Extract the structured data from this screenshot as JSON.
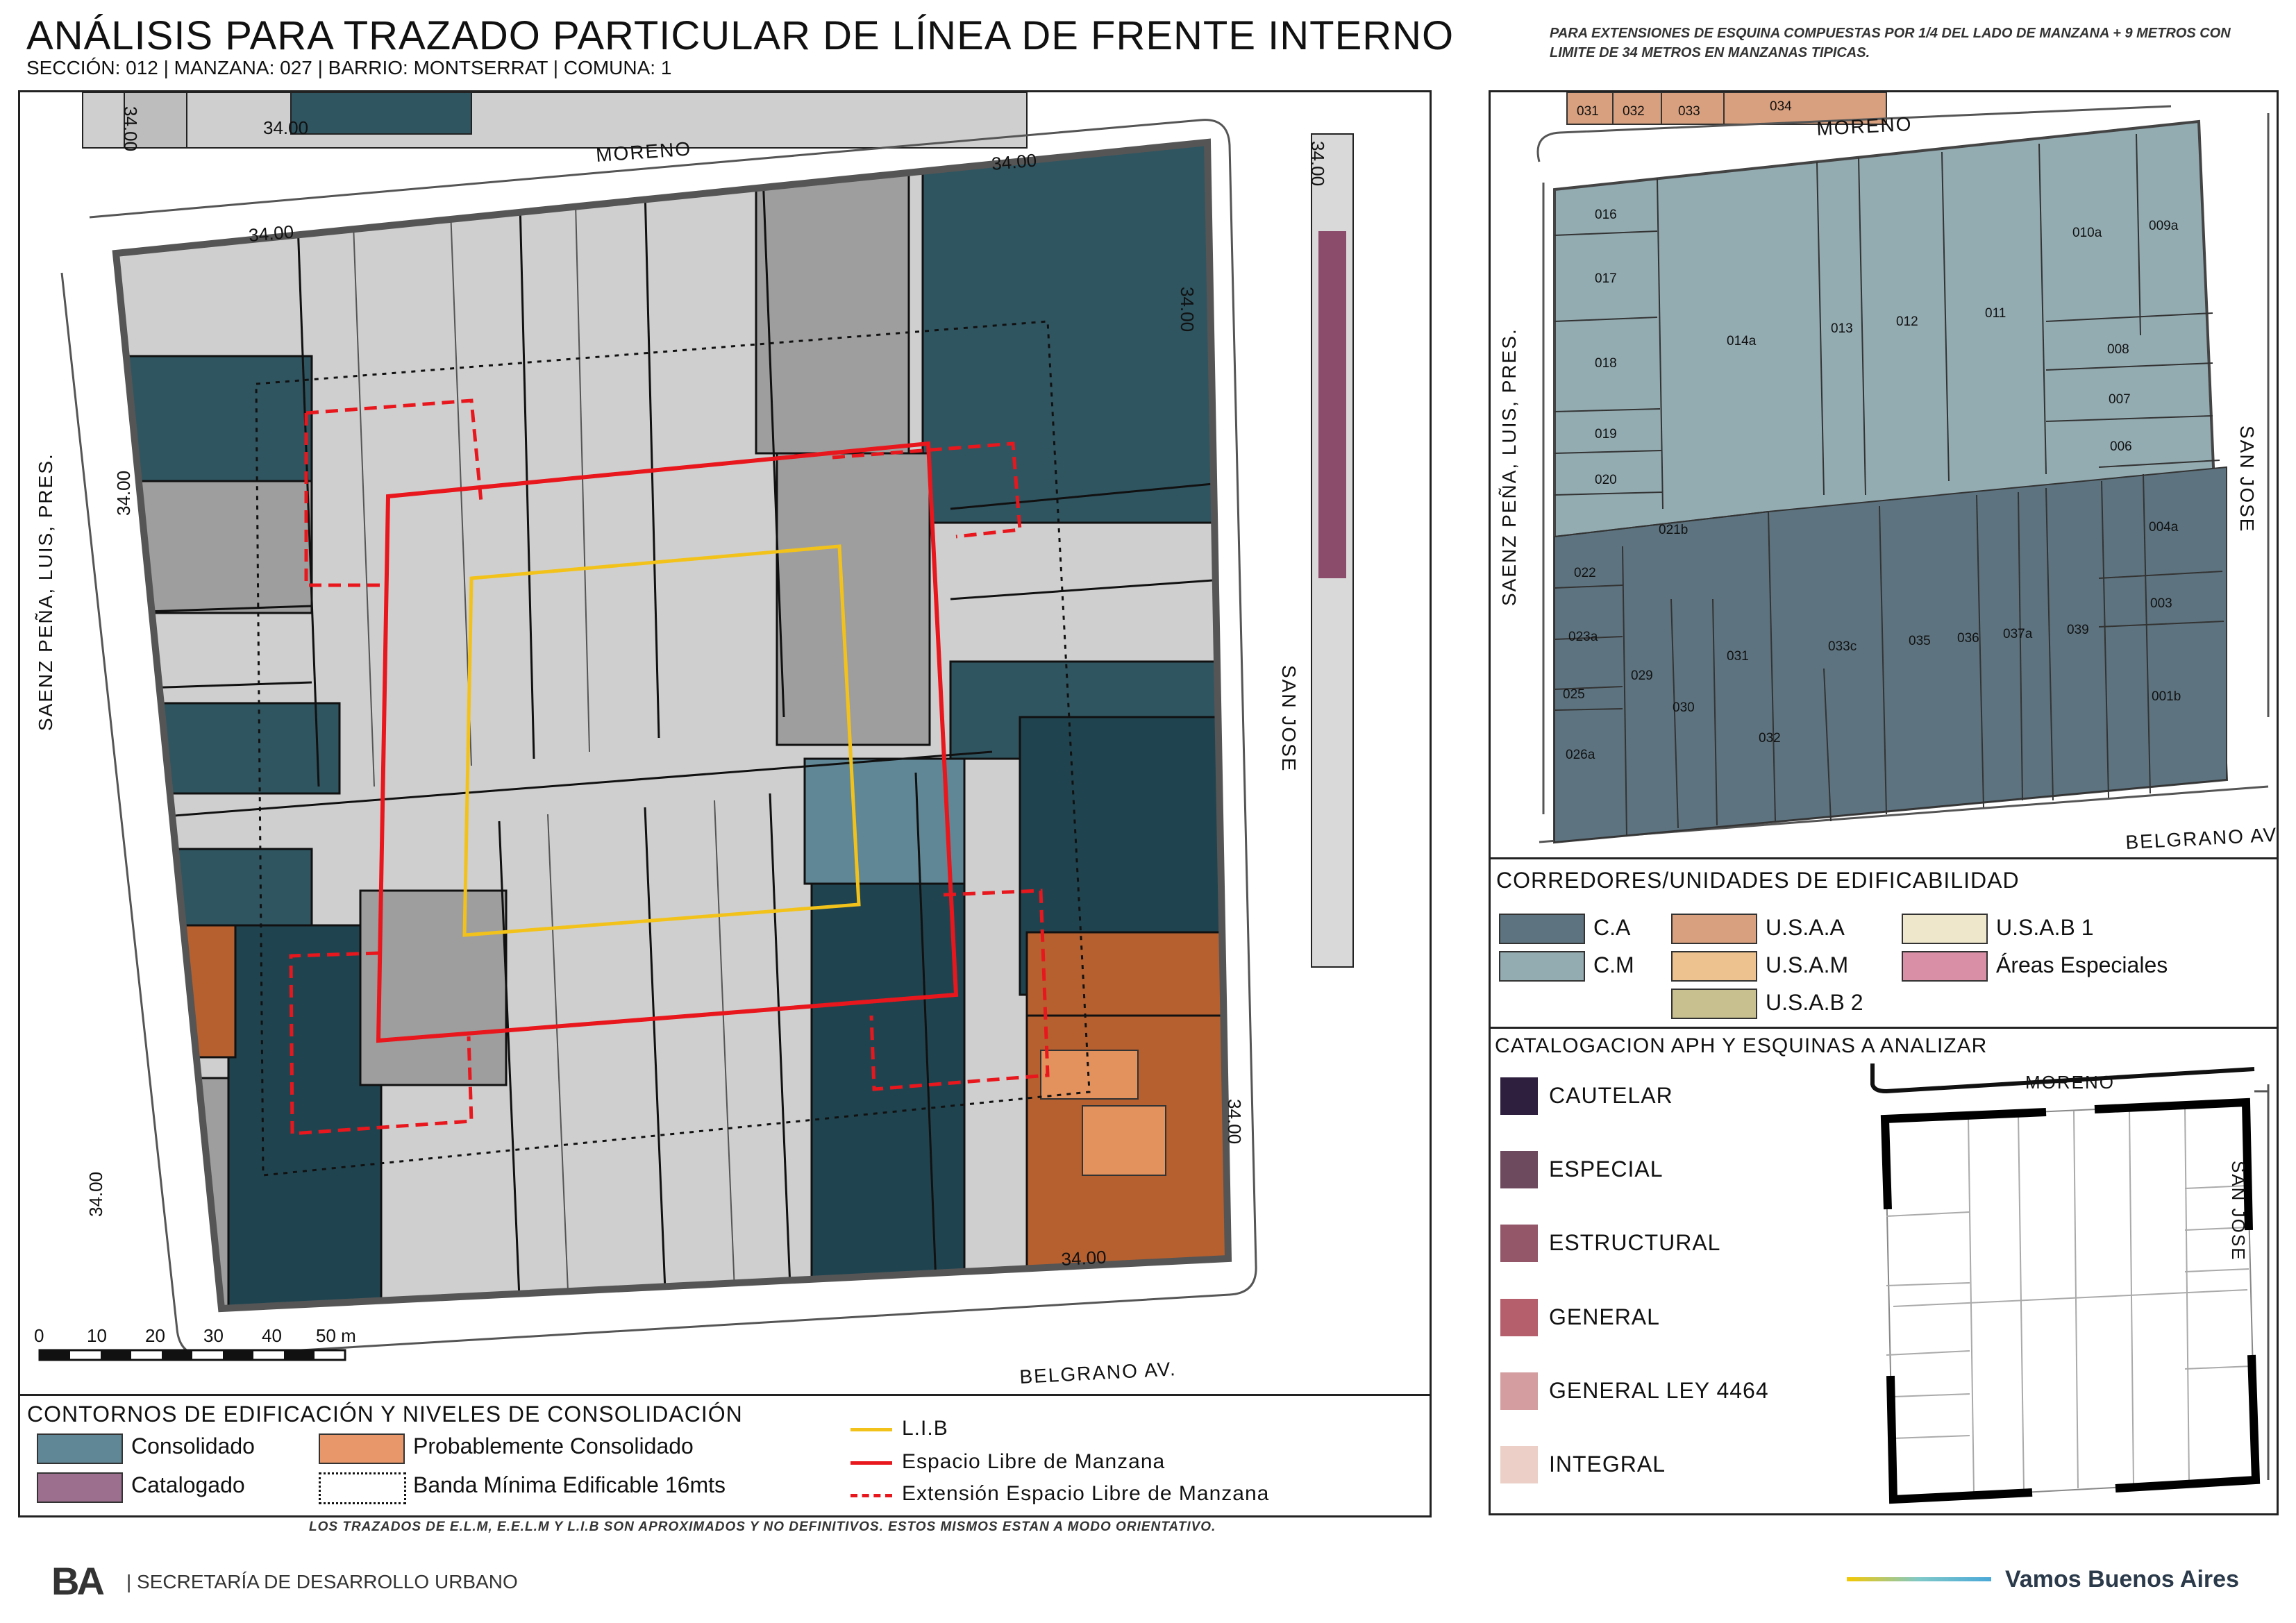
{
  "header": {
    "title": "ANÁLISIS PARA TRAZADO PARTICULAR DE LÍNEA DE FRENTE INTERNO",
    "subtitle": "SECCIÓN: 012 |  MANZANA: 027 | BARRIO: MONTSERRAT | COMUNA: 1",
    "note": "PARA EXTENSIONES DE ESQUINA COMPUESTAS POR 1/4 DEL LADO DE MANZANA + 9 METROS CON LIMITE DE 34 METROS EN MANZANAS TIPICAS."
  },
  "main_map": {
    "streets": {
      "top": "MORENO",
      "right": "SAN JOSE",
      "left": "SAENZ PEÑA, LUIS, PRES.",
      "bottom": "BELGRANO AV."
    },
    "dimension_label": "34.00",
    "scale": {
      "ticks": [
        "0",
        "10",
        "20",
        "30",
        "40",
        "50 m"
      ]
    }
  },
  "legend_main": {
    "title": "CONTORNOS DE EDIFICACIÓN Y NIVELES DE CONSOLIDACIÓN",
    "items": [
      {
        "label": "Consolidado",
        "color": "#5f8796"
      },
      {
        "label": "Probablemente Consolidado",
        "color": "#e8976a"
      },
      {
        "label": "Catalogado",
        "color": "#9c6f8e"
      },
      {
        "label": "Banda Mínima Edificable 16mts",
        "style": "dotted"
      }
    ],
    "lines": [
      {
        "label": "L.I.B",
        "color": "#f2c21b",
        "style": "solid"
      },
      {
        "label": "Espacio Libre de Manzana",
        "color": "#e8171d",
        "style": "solid"
      },
      {
        "label": "Extensión Espacio Libre de Manzana",
        "color": "#e8171d",
        "style": "dashed"
      }
    ]
  },
  "right_map": {
    "streets": {
      "top": "MORENO",
      "left": "SAENZ PEÑA, LUIS, PRES.",
      "right": "SAN JOSE",
      "bottom": "BELGRANO AV."
    },
    "top_lots": [
      "031",
      "032",
      "033",
      "034"
    ],
    "lots": [
      "016",
      "017",
      "018",
      "019",
      "020",
      "021b",
      "022",
      "023a",
      "025",
      "026a",
      "014a",
      "013",
      "012",
      "011",
      "010a",
      "009a",
      "008",
      "007",
      "006",
      "004a",
      "003",
      "001b",
      "029",
      "030",
      "031",
      "032",
      "033c",
      "035",
      "036",
      "037a",
      "039"
    ]
  },
  "corredores": {
    "title": "CORREDORES/UNIDADES DE EDIFICABILIDAD",
    "items": [
      {
        "label": "C.A",
        "color": "#5d7480"
      },
      {
        "label": "U.S.A.A",
        "color": "#d8a07e"
      },
      {
        "label": "U.S.A.B 1",
        "color": "#efe7cc"
      },
      {
        "label": "C.M",
        "color": "#93acb2"
      },
      {
        "label": "U.S.A.M",
        "color": "#eec28e"
      },
      {
        "label": "Áreas Especiales",
        "color": "#d98fa6"
      },
      {
        "label": "U.S.A.B 2",
        "color": "#c8c08e"
      }
    ]
  },
  "catalogacion": {
    "title": "CATALOGACION APH Y ESQUINAS A ANALIZAR",
    "items": [
      {
        "label": "CAUTELAR",
        "color": "#2e1f3e"
      },
      {
        "label": "ESPECIAL",
        "color": "#6e4a5f"
      },
      {
        "label": "ESTRUCTURAL",
        "color": "#94576a"
      },
      {
        "label": "GENERAL",
        "color": "#b55f6c"
      },
      {
        "label": "GENERAL LEY 4464",
        "color": "#d49ea1"
      },
      {
        "label": "INTEGRAL",
        "color": "#ecd0c8"
      }
    ],
    "inset_streets": {
      "top": "MORENO",
      "right": "SAN JOSE"
    }
  },
  "footer": {
    "note": "LOS TRAZADOS DE E.L.M, E.E.L.M Y L.I.B SON APROXIMADOS Y NO DEFINITIVOS. ESTOS MISMOS ESTAN A MODO ORIENTATIVO.",
    "logo": "BA",
    "department": "| SECRETARÍA DE DESARROLLO URBANO",
    "slogan": "Vamos Buenos Aires"
  }
}
